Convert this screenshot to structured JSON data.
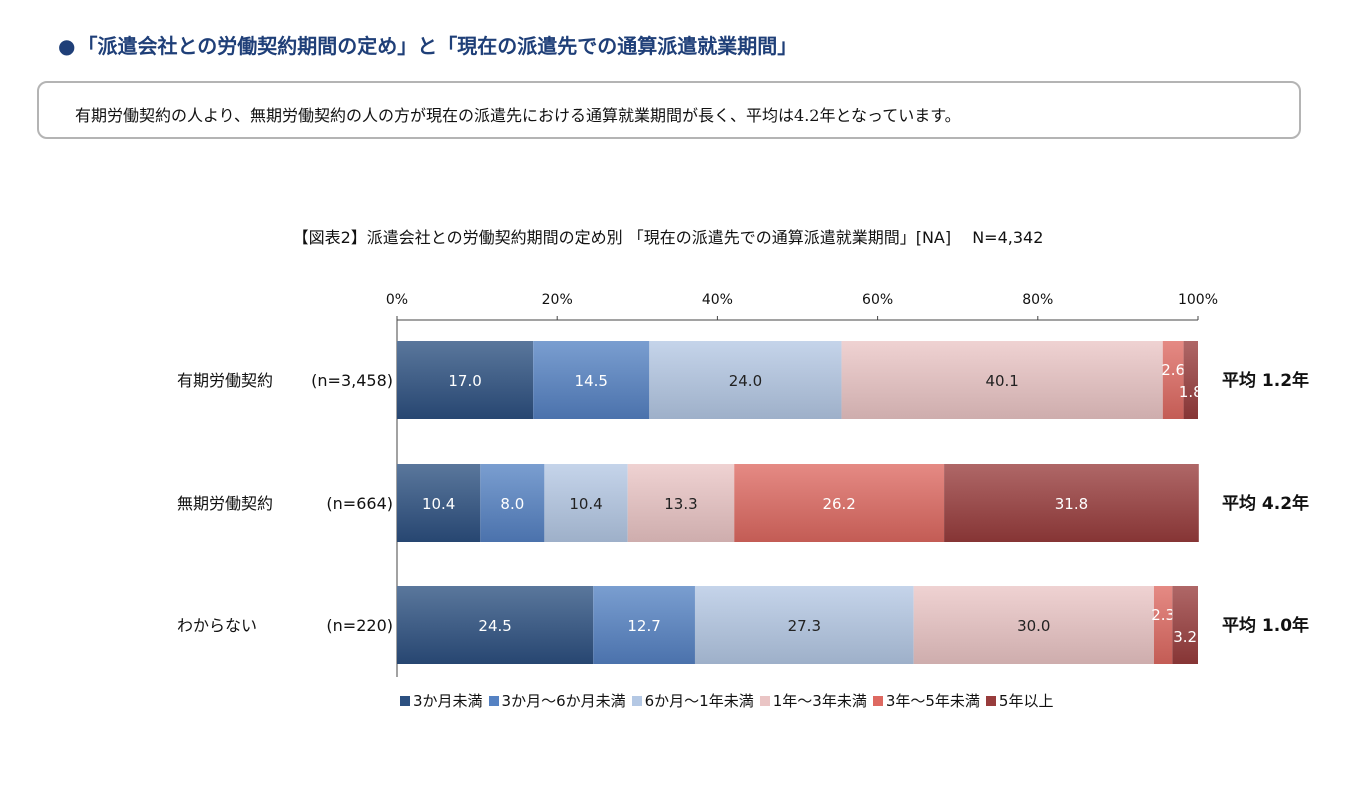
{
  "heading": {
    "bullet": "●",
    "text": "「派遣会社との労働契約期間の定め」と「現在の派遣先での通算派遣就業期間」"
  },
  "summary": "有期労働契約の人より、無期労働契約の人の方が現在の派遣先における通算就業期間が長く、平均は4.2年となっています。",
  "chart_data": {
    "type": "bar",
    "orientation": "horizontal-stacked-100",
    "title": "【図表2】派遣会社との労働契約期間の定め別 「現在の派遣先での通算派遣就業期間」[NA]　 N=4,342",
    "x_ticks": [
      "0%",
      "20%",
      "40%",
      "60%",
      "80%",
      "100%"
    ],
    "xlim": [
      0,
      100
    ],
    "grid": false,
    "legend_position": "bottom",
    "categories": [
      {
        "label": "有期労働契約",
        "n": "(n=3,458)",
        "average": "平均 1.2年"
      },
      {
        "label": "無期労働契約",
        "n": "(n=664)",
        "average": "平均 4.2年"
      },
      {
        "label": "わからない",
        "n": "(n=220)",
        "average": "平均 1.0年"
      }
    ],
    "series": [
      {
        "name": "3か月未満",
        "color": "#2c5080",
        "values": [
          17.0,
          10.4,
          24.5
        ]
      },
      {
        "name": "3か月～6か月未満",
        "color": "#5582c3",
        "values": [
          14.5,
          8.0,
          12.7
        ]
      },
      {
        "name": "6か月～1年未満",
        "color": "#b4c8e4",
        "values": [
          24.0,
          10.4,
          27.3
        ]
      },
      {
        "name": "1年～3年未満",
        "color": "#eac5c5",
        "values": [
          40.1,
          13.3,
          30.0
        ]
      },
      {
        "name": "3年～5年未満",
        "color": "#de6961",
        "values": [
          2.6,
          26.2,
          2.3
        ]
      },
      {
        "name": "5年以上",
        "color": "#983c3c",
        "values": [
          1.8,
          31.8,
          3.2
        ]
      }
    ],
    "data_labels": [
      [
        "17.0",
        "14.5",
        "24.0",
        "40.1",
        "2.6",
        "1.8"
      ],
      [
        "10.4",
        "8.0",
        "10.4",
        "13.3",
        "26.2",
        "31.8"
      ],
      [
        "24.5",
        "12.7",
        "27.3",
        "30.0",
        "2.3",
        "3.2"
      ]
    ]
  }
}
